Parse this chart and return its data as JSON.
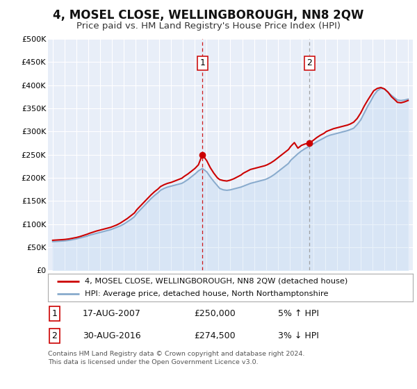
{
  "title": "4, MOSEL CLOSE, WELLINGBOROUGH, NN8 2QW",
  "subtitle": "Price paid vs. HM Land Registry's House Price Index (HPI)",
  "title_fontsize": 12,
  "subtitle_fontsize": 9.5,
  "background_color": "#ffffff",
  "plot_bg_color": "#e8eef8",
  "grid_color": "#ffffff",
  "ylim": [
    0,
    500000
  ],
  "yticks": [
    0,
    50000,
    100000,
    150000,
    200000,
    250000,
    300000,
    350000,
    400000,
    450000,
    500000
  ],
  "ytick_labels": [
    "£0",
    "£50K",
    "£100K",
    "£150K",
    "£200K",
    "£250K",
    "£300K",
    "£350K",
    "£400K",
    "£450K",
    "£500K"
  ],
  "xlim_start": 1994.6,
  "xlim_end": 2025.4,
  "marker1_x": 2007.633,
  "marker1_y": 250000,
  "marker2_x": 2016.663,
  "marker2_y": 274500,
  "vline1_x": 2007.633,
  "vline2_x": 2016.663,
  "legend_line1": "4, MOSEL CLOSE, WELLINGBOROUGH, NN8 2QW (detached house)",
  "legend_line2": "HPI: Average price, detached house, North Northamptonshire",
  "line1_color": "#cc0000",
  "line2_color": "#88aacc",
  "fill2_color": "#aaccee",
  "marker_color": "#cc0000",
  "vline1_color": "#cc0000",
  "vline2_color": "#999999",
  "table_row1": [
    "1",
    "17-AUG-2007",
    "£250,000",
    "5% ↑ HPI"
  ],
  "table_row2": [
    "2",
    "30-AUG-2016",
    "£274,500",
    "3% ↓ HPI"
  ],
  "footnote": "Contains HM Land Registry data © Crown copyright and database right 2024.\nThis data is licensed under the Open Government Licence v3.0.",
  "hpi_years": [
    1995.0,
    1995.3,
    1995.6,
    1995.9,
    1996.1,
    1996.4,
    1996.7,
    1997.0,
    1997.3,
    1997.6,
    1997.9,
    1998.1,
    1998.4,
    1998.7,
    1999.0,
    1999.3,
    1999.6,
    1999.9,
    2000.1,
    2000.4,
    2000.7,
    2001.0,
    2001.3,
    2001.6,
    2001.9,
    2002.1,
    2002.4,
    2002.7,
    2003.0,
    2003.3,
    2003.6,
    2003.9,
    2004.1,
    2004.4,
    2004.7,
    2005.0,
    2005.3,
    2005.6,
    2005.9,
    2006.1,
    2006.4,
    2006.7,
    2007.0,
    2007.3,
    2007.633,
    2008.0,
    2008.3,
    2008.6,
    2008.9,
    2009.1,
    2009.4,
    2009.7,
    2010.0,
    2010.3,
    2010.6,
    2010.9,
    2011.1,
    2011.4,
    2011.7,
    2012.0,
    2012.3,
    2012.6,
    2012.9,
    2013.1,
    2013.4,
    2013.7,
    2014.0,
    2014.3,
    2014.6,
    2014.9,
    2015.1,
    2015.4,
    2015.7,
    2016.0,
    2016.3,
    2016.663,
    2017.0,
    2017.3,
    2017.6,
    2017.9,
    2018.1,
    2018.4,
    2018.7,
    2019.0,
    2019.3,
    2019.6,
    2019.9,
    2020.1,
    2020.4,
    2020.7,
    2021.0,
    2021.3,
    2021.6,
    2021.9,
    2022.1,
    2022.4,
    2022.7,
    2023.0,
    2023.3,
    2023.6,
    2023.9,
    2024.1,
    2024.4,
    2024.7,
    2025.0
  ],
  "hpi_values": [
    62000,
    62500,
    63000,
    63500,
    64000,
    65000,
    66500,
    68000,
    70000,
    72000,
    74000,
    76000,
    78000,
    80000,
    82000,
    84000,
    86000,
    88000,
    90000,
    93000,
    96000,
    100000,
    105000,
    110000,
    116000,
    123000,
    131000,
    139000,
    147000,
    155000,
    162000,
    168000,
    173000,
    177000,
    180000,
    182000,
    184000,
    186000,
    188000,
    191000,
    196000,
    202000,
    208000,
    215000,
    220000,
    213000,
    202000,
    192000,
    183000,
    177000,
    174000,
    173000,
    174000,
    176000,
    178000,
    180000,
    182000,
    185000,
    188000,
    190000,
    192000,
    194000,
    196000,
    198000,
    202000,
    207000,
    213000,
    219000,
    225000,
    231000,
    238000,
    245000,
    252000,
    258000,
    263000,
    268000,
    273000,
    278000,
    282000,
    286000,
    289000,
    292000,
    294000,
    296000,
    298000,
    300000,
    302000,
    304000,
    307000,
    315000,
    325000,
    340000,
    355000,
    368000,
    378000,
    388000,
    393000,
    392000,
    385000,
    378000,
    372000,
    368000,
    367000,
    368000,
    370000
  ],
  "price_years": [
    1995.0,
    1995.3,
    1995.6,
    1995.9,
    1996.1,
    1996.4,
    1996.7,
    1997.0,
    1997.3,
    1997.6,
    1997.9,
    1998.1,
    1998.4,
    1998.7,
    1999.0,
    1999.3,
    1999.6,
    1999.9,
    2000.1,
    2000.4,
    2000.7,
    2001.0,
    2001.3,
    2001.6,
    2001.9,
    2002.1,
    2002.4,
    2002.7,
    2003.0,
    2003.3,
    2003.6,
    2003.9,
    2004.1,
    2004.4,
    2004.7,
    2005.0,
    2005.3,
    2005.6,
    2005.9,
    2006.1,
    2006.4,
    2006.7,
    2007.0,
    2007.3,
    2007.633,
    2008.0,
    2008.3,
    2008.6,
    2008.9,
    2009.1,
    2009.4,
    2009.7,
    2010.0,
    2010.3,
    2010.6,
    2010.9,
    2011.1,
    2011.4,
    2011.7,
    2012.0,
    2012.3,
    2012.6,
    2012.9,
    2013.1,
    2013.4,
    2013.7,
    2014.0,
    2014.3,
    2014.6,
    2014.9,
    2015.1,
    2015.4,
    2015.7,
    2016.0,
    2016.3,
    2016.663,
    2017.0,
    2017.3,
    2017.6,
    2017.9,
    2018.1,
    2018.4,
    2018.7,
    2019.0,
    2019.3,
    2019.6,
    2019.9,
    2020.1,
    2020.4,
    2020.7,
    2021.0,
    2021.3,
    2021.6,
    2021.9,
    2022.1,
    2022.4,
    2022.7,
    2023.0,
    2023.3,
    2023.6,
    2023.9,
    2024.1,
    2024.4,
    2024.7,
    2025.0
  ],
  "price_values": [
    65000,
    65500,
    66000,
    66500,
    67000,
    68000,
    69500,
    71000,
    73000,
    75500,
    78000,
    80000,
    82500,
    85000,
    87000,
    89000,
    91000,
    93000,
    95000,
    98000,
    102000,
    107000,
    112000,
    118000,
    124000,
    131000,
    139000,
    147000,
    155000,
    163000,
    170000,
    176000,
    181000,
    185000,
    188000,
    190000,
    193000,
    196000,
    199000,
    203000,
    208000,
    214000,
    220000,
    228000,
    250000,
    237000,
    222000,
    210000,
    200000,
    196000,
    194000,
    193000,
    195000,
    198000,
    202000,
    206000,
    210000,
    214000,
    218000,
    220000,
    222000,
    224000,
    226000,
    228000,
    232000,
    237000,
    243000,
    249000,
    255000,
    261000,
    268000,
    276000,
    264000,
    270000,
    273000,
    274500,
    281000,
    287000,
    292000,
    296000,
    300000,
    303000,
    306000,
    308000,
    310000,
    312000,
    314000,
    316000,
    320000,
    328000,
    340000,
    355000,
    368000,
    380000,
    388000,
    393000,
    395000,
    392000,
    385000,
    375000,
    368000,
    363000,
    362000,
    364000,
    367000
  ]
}
